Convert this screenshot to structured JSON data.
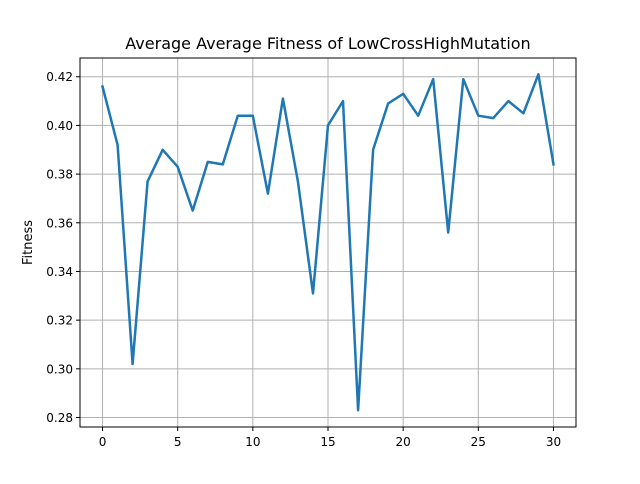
{
  "chart_data": {
    "type": "line",
    "title": "Average Average Fitness of LowCrossHighMutation",
    "xlabel": "",
    "ylabel": "Fitness",
    "xlim": [
      -1.5,
      31.5
    ],
    "ylim": [
      0.2761,
      0.4277
    ],
    "xticks": [
      0,
      5,
      10,
      15,
      20,
      25,
      30
    ],
    "yticks": [
      0.28,
      0.3,
      0.32,
      0.34,
      0.36,
      0.38,
      0.4,
      0.42
    ],
    "ytick_labels": [
      "0.28",
      "0.30",
      "0.32",
      "0.34",
      "0.36",
      "0.38",
      "0.40",
      "0.42"
    ],
    "grid": true,
    "line_color": "#1f77b4",
    "series": [
      {
        "x": [
          0,
          1,
          2,
          3,
          4,
          5,
          6,
          7,
          8,
          9,
          10,
          11,
          12,
          13,
          14,
          15,
          16,
          17,
          18,
          19,
          20,
          21,
          22,
          23,
          24,
          25,
          26,
          27,
          28,
          29,
          30
        ],
        "values": [
          0.416,
          0.392,
          0.302,
          0.377,
          0.39,
          0.383,
          0.365,
          0.385,
          0.384,
          0.404,
          0.404,
          0.372,
          0.411,
          0.377,
          0.331,
          0.4,
          0.41,
          0.283,
          0.39,
          0.409,
          0.413,
          0.404,
          0.419,
          0.356,
          0.419,
          0.404,
          0.403,
          0.41,
          0.405,
          0.421,
          0.384
        ]
      }
    ]
  }
}
